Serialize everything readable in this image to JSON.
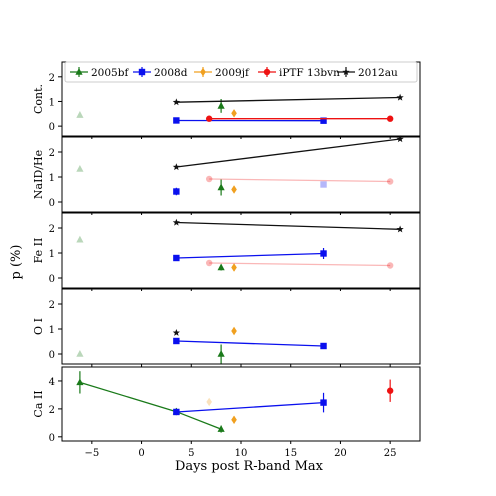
{
  "figure": {
    "xlabel": "Days post R-band Max",
    "ylabel": "p (%)"
  },
  "chart_data": {
    "type": "scatter",
    "xlim": [
      -8,
      28
    ],
    "ylim": [
      -0.4,
      2.6
    ],
    "x_ticks": [
      -5,
      0,
      5,
      10,
      15,
      20,
      25
    ],
    "x_tick_labels": [
      "−5",
      "0",
      "5",
      "10",
      "15",
      "20",
      "25"
    ],
    "y_ticks": [
      0,
      1,
      2
    ],
    "y_tick_labels": [
      "0",
      "1",
      "2"
    ],
    "grid": false,
    "legend_position": "top",
    "legend": [
      {
        "name": "2005bf",
        "color": "#1a7a1a",
        "marker": "triangle"
      },
      {
        "name": "2008d",
        "color": "#0a10ee",
        "marker": "square"
      },
      {
        "name": "2009jf",
        "color": "#f0a020",
        "marker": "diamond"
      },
      {
        "name": "iPTF 13bvn",
        "color": "#ee1111",
        "marker": "circle"
      },
      {
        "name": "2012au",
        "color": "#111111",
        "marker": "star"
      }
    ],
    "panels": [
      {
        "label": "Cont.",
        "series": [
          {
            "name": "2005bf",
            "x": [
              -6.2,
              8.0
            ],
            "y": [
              0.45,
              0.82
            ],
            "err": [
              0,
              0.28
            ],
            "faded": [
              true,
              false
            ],
            "line": false
          },
          {
            "name": "2008d",
            "x": [
              3.5,
              18.3
            ],
            "y": [
              0.23,
              0.22
            ],
            "err": [
              0,
              0.05
            ],
            "faded": [
              false,
              false
            ],
            "line": true
          },
          {
            "name": "2009jf",
            "x": [
              9.3
            ],
            "y": [
              0.52
            ],
            "err": [
              0.12
            ],
            "faded": [
              false
            ],
            "line": false
          },
          {
            "name": "iPTF 13bvn",
            "x": [
              6.8,
              25.0
            ],
            "y": [
              0.3,
              0.3
            ],
            "err": [
              0,
              0
            ],
            "faded": [
              false,
              false
            ],
            "line": true
          },
          {
            "name": "2012au",
            "x": [
              3.5,
              26.0
            ],
            "y": [
              0.97,
              1.16
            ],
            "err": [
              0,
              0
            ],
            "faded": [
              false,
              false
            ],
            "line": true
          }
        ]
      },
      {
        "label": "NaID/He",
        "series": [
          {
            "name": "2005bf",
            "x": [
              -6.2,
              8.0
            ],
            "y": [
              1.32,
              0.58
            ],
            "err": [
              0,
              0.32
            ],
            "faded": [
              true,
              false
            ],
            "line": false
          },
          {
            "name": "2008d",
            "x": [
              3.5,
              18.3
            ],
            "y": [
              0.42,
              0.7
            ],
            "err": [
              0.15,
              0
            ],
            "faded": [
              false,
              true
            ],
            "line": false
          },
          {
            "name": "2009jf",
            "x": [
              9.3
            ],
            "y": [
              0.5
            ],
            "err": [
              0.12
            ],
            "faded": [
              false
            ],
            "line": false
          },
          {
            "name": "iPTF 13bvn",
            "x": [
              6.8,
              25.0
            ],
            "y": [
              0.92,
              0.82
            ],
            "err": [
              0,
              0
            ],
            "faded": [
              true,
              true
            ],
            "line": true
          },
          {
            "name": "2012au",
            "x": [
              3.5,
              26.0
            ],
            "y": [
              1.4,
              2.52
            ],
            "err": [
              0,
              0
            ],
            "faded": [
              false,
              false
            ],
            "line": true
          }
        ]
      },
      {
        "label": "Fe II",
        "series": [
          {
            "name": "2005bf",
            "x": [
              -6.2,
              8.0
            ],
            "y": [
              1.53,
              0.42
            ],
            "err": [
              0,
              0.12
            ],
            "faded": [
              true,
              false
            ],
            "line": false
          },
          {
            "name": "2008d",
            "x": [
              3.5,
              18.3
            ],
            "y": [
              0.8,
              0.98
            ],
            "err": [
              0.12,
              0.22
            ],
            "faded": [
              false,
              false
            ],
            "line": true
          },
          {
            "name": "2009jf",
            "x": [
              9.3
            ],
            "y": [
              0.42
            ],
            "err": [
              0.14
            ],
            "faded": [
              false
            ],
            "line": false
          },
          {
            "name": "iPTF 13bvn",
            "x": [
              6.8,
              25.0
            ],
            "y": [
              0.6,
              0.5
            ],
            "err": [
              0,
              0
            ],
            "faded": [
              true,
              true
            ],
            "line": true
          },
          {
            "name": "2012au",
            "x": [
              3.5,
              26.0
            ],
            "y": [
              2.22,
              1.95
            ],
            "err": [
              0,
              0
            ],
            "faded": [
              false,
              false
            ],
            "line": true
          }
        ]
      },
      {
        "label": "O I",
        "series": [
          {
            "name": "2005bf",
            "x": [
              -6.2,
              8.0
            ],
            "y": [
              0.0,
              0.0
            ],
            "err": [
              0,
              0.38
            ],
            "faded": [
              true,
              false
            ],
            "line": false
          },
          {
            "name": "2008d",
            "x": [
              3.5,
              18.3
            ],
            "y": [
              0.52,
              0.32
            ],
            "err": [
              0,
              0
            ],
            "faded": [
              false,
              false
            ],
            "line": true
          },
          {
            "name": "2009jf",
            "x": [
              9.3
            ],
            "y": [
              0.92
            ],
            "err": [
              0.14
            ],
            "faded": [
              false
            ],
            "line": false
          },
          {
            "name": "2012au",
            "x": [
              3.5
            ],
            "y": [
              0.85
            ],
            "err": [
              0
            ],
            "faded": [
              false
            ],
            "line": false
          }
        ]
      },
      {
        "label": "Ca II",
        "series": [
          {
            "name": "2005bf",
            "x": [
              -6.2,
              3.5,
              8.0
            ],
            "y": [
              3.9,
              1.8,
              0.55
            ],
            "err": [
              0.8,
              0.25,
              0.25
            ],
            "faded": [
              false,
              false,
              false
            ],
            "line": true
          },
          {
            "name": "2008d",
            "x": [
              3.5,
              18.3
            ],
            "y": [
              1.78,
              2.45
            ],
            "err": [
              0,
              0.7
            ],
            "faded": [
              false,
              false
            ],
            "line": true
          },
          {
            "name": "2009jf",
            "x": [
              6.8,
              9.3
            ],
            "y": [
              2.5,
              1.22
            ],
            "err": [
              0,
              0.25
            ],
            "faded": [
              true,
              false
            ],
            "line": false
          },
          {
            "name": "iPTF 13bvn",
            "x": [
              25.0
            ],
            "y": [
              3.3
            ],
            "err": [
              0.8
            ],
            "faded": [
              false
            ],
            "line": false
          }
        ],
        "ylim": [
          -0.3,
          5.0
        ],
        "y_ticks": [
          0,
          2,
          4
        ],
        "y_tick_labels": [
          "0",
          "2",
          "4"
        ]
      }
    ]
  }
}
